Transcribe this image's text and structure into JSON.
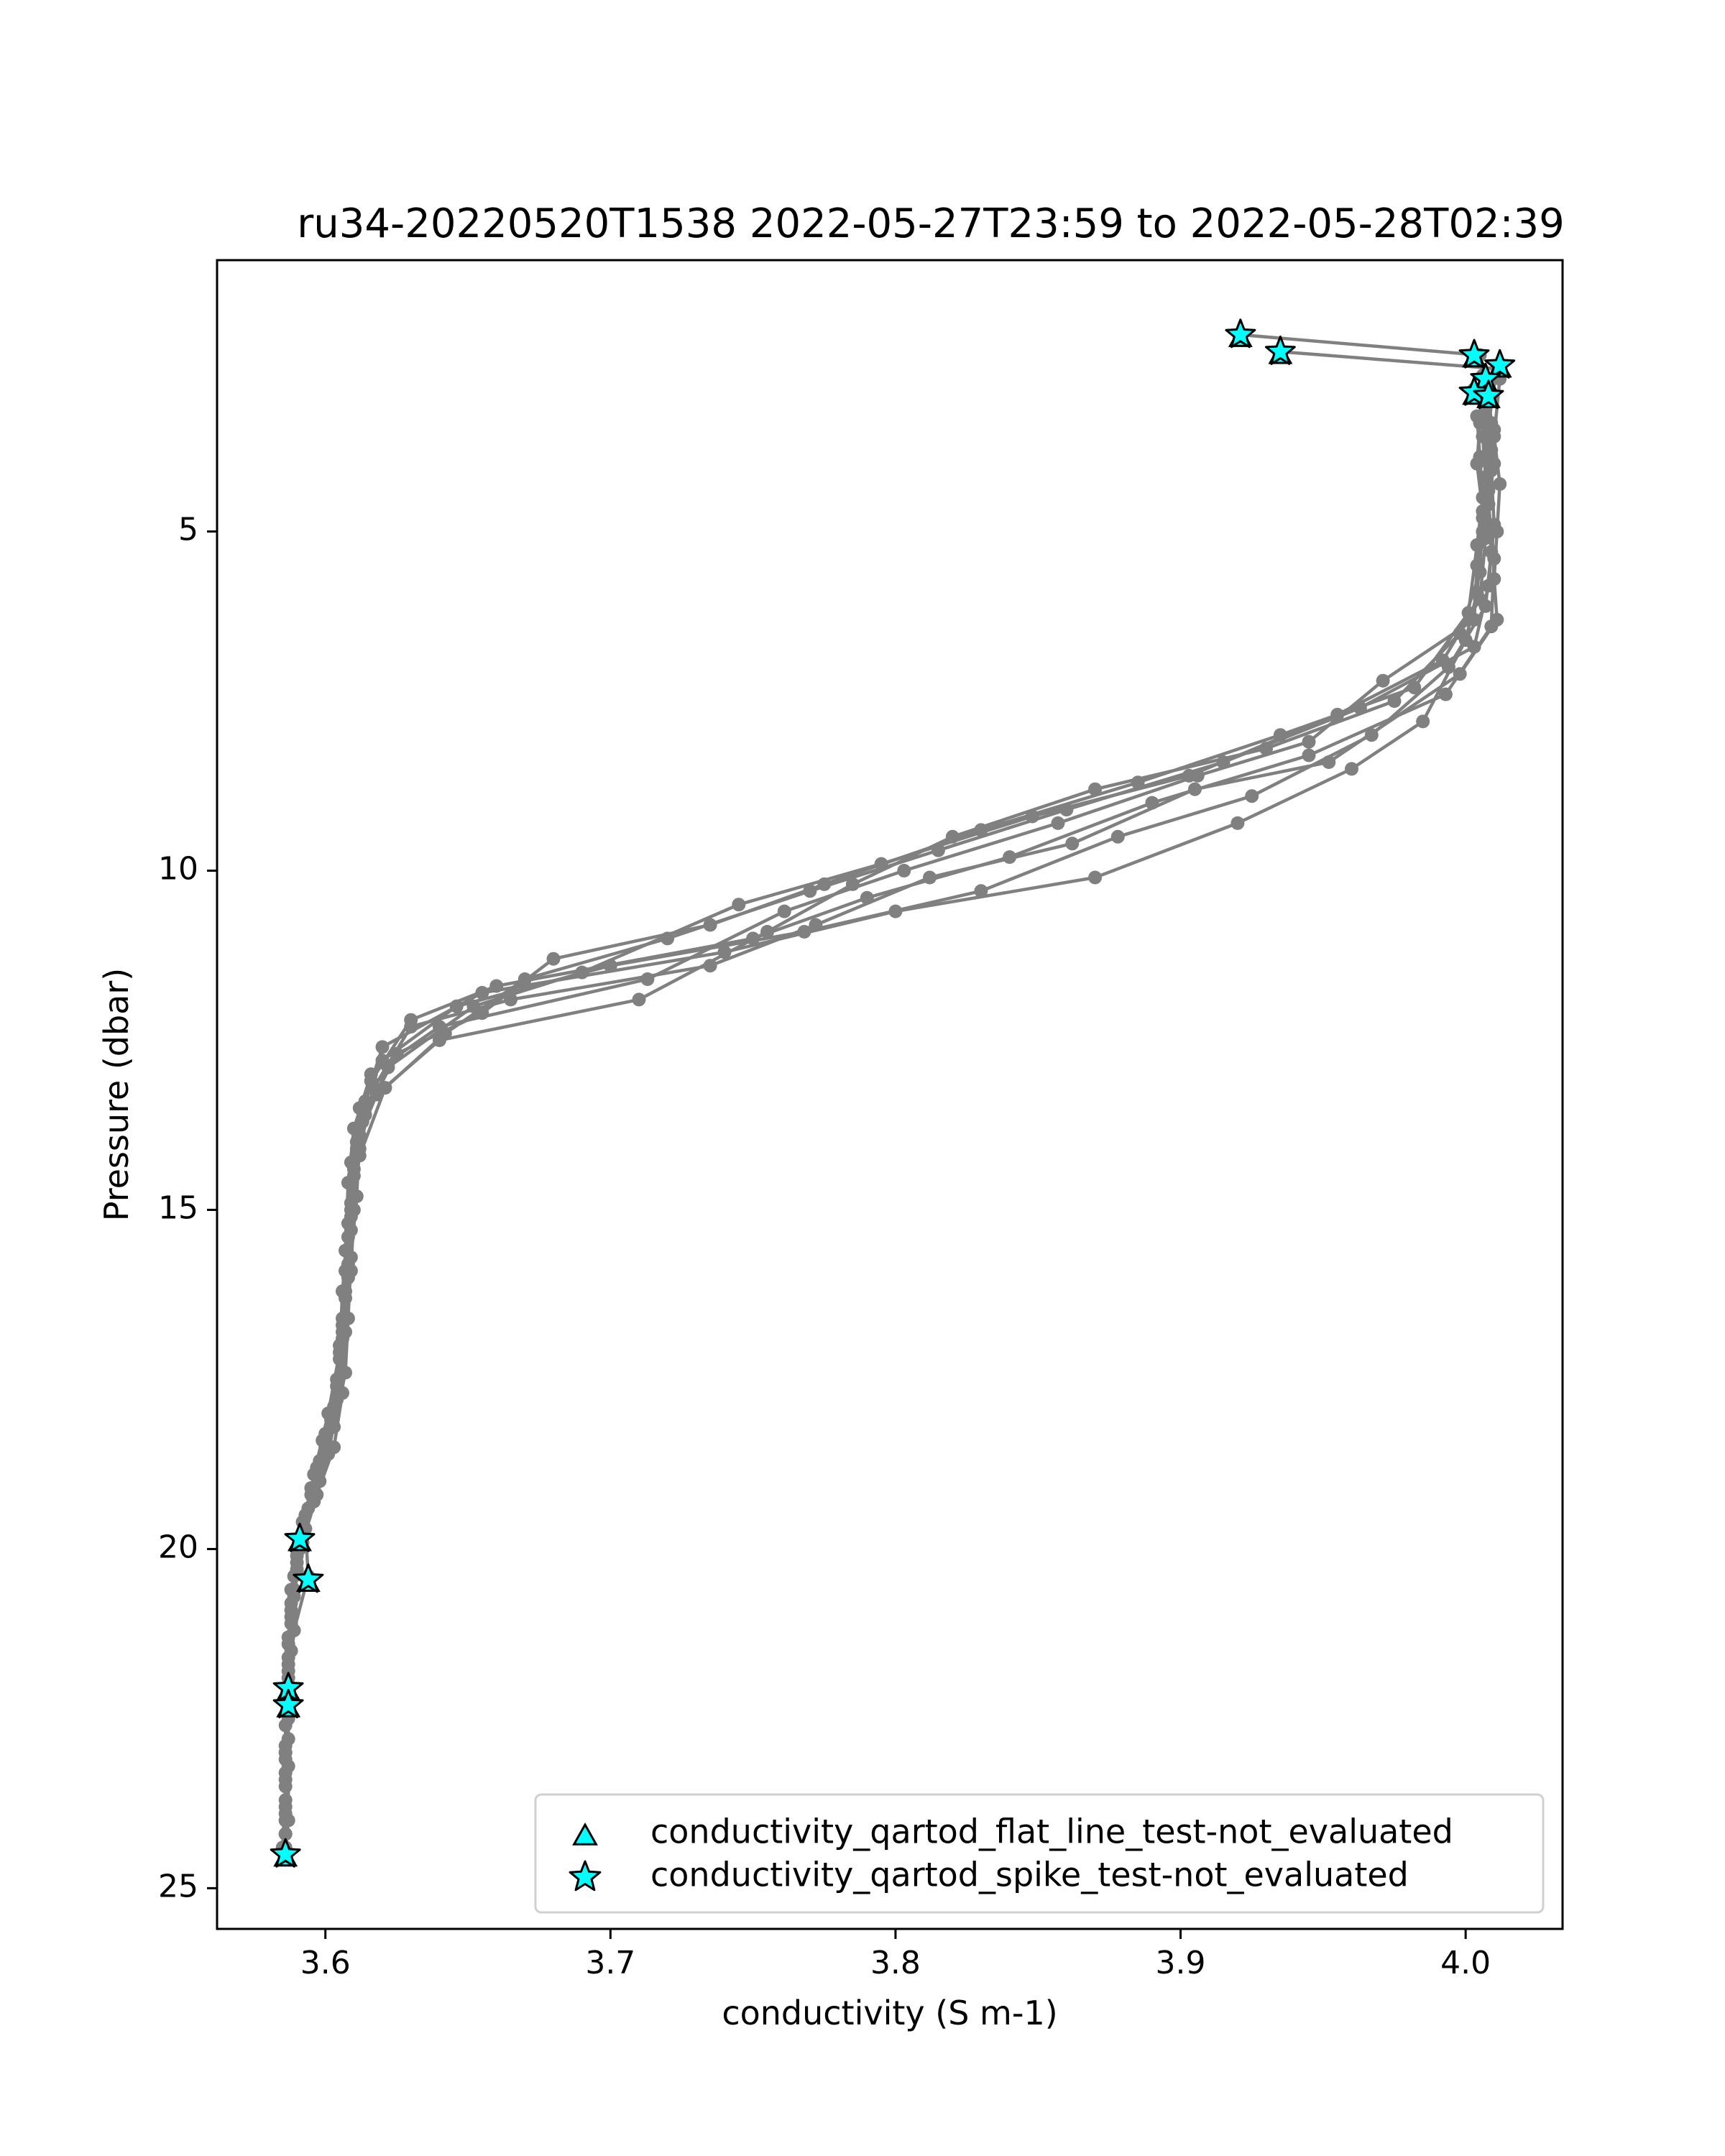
{
  "chart_data": {
    "type": "line",
    "title": "ru34-20220520T1538 2022-05-27T23:59 to 2022-05-28T02:39",
    "xlabel": "conductivity (S m-1)",
    "ylabel": "Pressure (dbar)",
    "xlim": [
      3.562,
      4.034
    ],
    "ylim": [
      25.6,
      1.0
    ],
    "y_inverted": true,
    "grid": false,
    "x_ticks": [
      3.6,
      3.7,
      3.8,
      3.9,
      4.0
    ],
    "x_tick_labels": [
      "3.6",
      "3.7",
      "3.8",
      "3.9",
      "4.0"
    ],
    "y_ticks": [
      5,
      10,
      15,
      20,
      25
    ],
    "y_tick_labels": [
      "5",
      "10",
      "15",
      "20",
      "25"
    ],
    "line_color": "#808080",
    "flag_color": "#00ffff",
    "legend_position": "lower right",
    "legend": [
      {
        "marker": "triangle",
        "label": "conductivity_qartod_flat_line_test-not_evaluated"
      },
      {
        "marker": "star",
        "label": "conductivity_qartod_spike_test-not_evaluated"
      }
    ],
    "series": [
      {
        "values": [
          [
            3.921,
            2.1
          ],
          [
            4.005,
            2.4
          ],
          [
            4.006,
            2.7
          ],
          [
            4.007,
            3.1
          ],
          [
            4.006,
            3.6
          ],
          [
            4.007,
            4.2
          ],
          [
            4.006,
            4.8
          ],
          [
            4.004,
            5.5
          ],
          [
            4.003,
            6.3
          ],
          [
            3.971,
            7.2
          ],
          [
            3.945,
            8.1
          ],
          [
            3.906,
            8.6
          ],
          [
            3.857,
            9.3
          ],
          [
            3.803,
            10.0
          ],
          [
            3.761,
            10.6
          ],
          [
            3.713,
            11.6
          ],
          [
            3.64,
            12.3
          ],
          [
            3.616,
            13.0
          ],
          [
            3.61,
            13.8
          ],
          [
            3.608,
            14.6
          ],
          [
            3.607,
            15.6
          ],
          [
            3.606,
            16.6
          ],
          [
            3.604,
            17.5
          ],
          [
            3.6,
            18.3
          ],
          [
            3.595,
            19.1
          ],
          [
            3.591,
            19.9
          ],
          [
            3.588,
            20.6
          ],
          [
            3.587,
            21.4
          ],
          [
            3.587,
            22.3
          ],
          [
            3.587,
            23.2
          ],
          [
            3.587,
            24.0
          ],
          [
            3.586,
            24.5
          ]
        ]
      },
      {
        "values": [
          [
            3.935,
            2.35
          ],
          [
            4.011,
            2.6
          ],
          [
            4.008,
            2.9
          ],
          [
            4.009,
            3.4
          ],
          [
            4.01,
            4.0
          ],
          [
            4.008,
            4.6
          ],
          [
            4.009,
            5.3
          ],
          [
            4.007,
            6.1
          ],
          [
            3.994,
            7.0
          ],
          [
            3.967,
            8.0
          ],
          [
            3.925,
            8.9
          ],
          [
            3.878,
            9.5
          ],
          [
            3.83,
            10.3
          ],
          [
            3.768,
            10.9
          ],
          [
            3.7,
            11.4
          ],
          [
            3.646,
            12.0
          ],
          [
            3.62,
            12.8
          ],
          [
            3.612,
            13.5
          ],
          [
            3.609,
            14.3
          ],
          [
            3.608,
            15.2
          ],
          [
            3.606,
            16.2
          ],
          [
            3.605,
            17.1
          ],
          [
            3.601,
            18.0
          ],
          [
            3.596,
            18.9
          ],
          [
            3.593,
            19.7
          ],
          [
            3.594,
            20.4
          ],
          [
            3.589,
            21.2
          ],
          [
            3.587,
            22.0
          ],
          [
            3.586,
            23.0
          ],
          [
            3.586,
            24.0
          ],
          [
            3.586,
            24.5
          ]
        ]
      },
      {
        "values": [
          [
            4.003,
            2.9
          ],
          [
            4.006,
            3.3
          ],
          [
            4.007,
            3.9
          ],
          [
            4.008,
            4.6
          ],
          [
            4.01,
            5.4
          ],
          [
            4.009,
            6.4
          ],
          [
            3.993,
            7.4
          ],
          [
            3.945,
            8.3
          ],
          [
            3.89,
            9.0
          ],
          [
            3.84,
            9.8
          ],
          [
            3.79,
            10.4
          ],
          [
            3.75,
            11.0
          ],
          [
            3.66,
            11.7
          ],
          [
            3.63,
            12.2
          ],
          [
            3.616,
            13.1
          ],
          [
            3.612,
            13.9
          ],
          [
            3.611,
            14.8
          ],
          [
            3.609,
            15.7
          ],
          [
            3.608,
            16.6
          ],
          [
            3.607,
            17.4
          ],
          [
            3.603,
            18.2
          ],
          [
            3.598,
            19.0
          ],
          [
            3.592,
            19.8
          ],
          [
            3.589,
            20.7
          ],
          [
            3.587,
            21.6
          ],
          [
            3.587,
            22.5
          ],
          [
            3.586,
            23.4
          ],
          [
            3.586,
            24.2
          ]
        ]
      },
      {
        "values": [
          [
            4.011,
            2.7
          ],
          [
            4.009,
            3.0
          ],
          [
            4.008,
            3.5
          ],
          [
            4.007,
            4.2
          ],
          [
            4.006,
            5.0
          ],
          [
            4.004,
            5.9
          ],
          [
            4.0,
            6.6
          ],
          [
            3.985,
            7.8
          ],
          [
            3.96,
            8.5
          ],
          [
            3.92,
            9.3
          ],
          [
            3.87,
            10.1
          ],
          [
            3.8,
            10.6
          ],
          [
            3.74,
            11.2
          ],
          [
            3.655,
            11.8
          ],
          [
            3.62,
            12.6
          ],
          [
            3.614,
            13.4
          ],
          [
            3.611,
            14.1
          ],
          [
            3.609,
            15.0
          ],
          [
            3.607,
            15.9
          ],
          [
            3.606,
            16.8
          ],
          [
            3.605,
            17.7
          ],
          [
            3.601,
            18.6
          ],
          [
            3.596,
            19.3
          ],
          [
            3.59,
            20.1
          ],
          [
            3.588,
            20.9
          ],
          [
            3.587,
            21.8
          ],
          [
            3.587,
            22.8
          ],
          [
            3.586,
            23.7
          ],
          [
            3.586,
            24.5
          ]
        ]
      },
      {
        "values": [
          [
            4.008,
            2.8
          ],
          [
            4.007,
            3.2
          ],
          [
            4.009,
            3.8
          ],
          [
            4.008,
            4.4
          ],
          [
            4.007,
            5.1
          ],
          [
            4.005,
            6.0
          ],
          [
            3.992,
            6.9
          ],
          [
            3.955,
            7.7
          ],
          [
            3.903,
            8.6
          ],
          [
            3.848,
            9.2
          ],
          [
            3.795,
            9.9
          ],
          [
            3.745,
            10.5
          ],
          [
            3.69,
            11.5
          ],
          [
            3.652,
            12.0
          ],
          [
            3.622,
            12.9
          ],
          [
            3.613,
            13.7
          ],
          [
            3.61,
            14.5
          ],
          [
            3.608,
            15.4
          ],
          [
            3.607,
            16.3
          ],
          [
            3.605,
            17.2
          ],
          [
            3.602,
            18.1
          ],
          [
            3.597,
            18.8
          ],
          [
            3.592,
            19.6
          ],
          [
            3.589,
            20.4
          ],
          [
            3.587,
            21.3
          ],
          [
            3.587,
            22.2
          ],
          [
            3.586,
            23.1
          ],
          [
            3.586,
            24.0
          ]
        ]
      },
      {
        "values": [
          [
            4.006,
            2.95
          ],
          [
            4.005,
            3.4
          ],
          [
            4.004,
            4.0
          ],
          [
            4.006,
            4.7
          ],
          [
            4.005,
            5.6
          ],
          [
            3.998,
            6.5
          ],
          [
            3.975,
            7.5
          ],
          [
            3.93,
            8.2
          ],
          [
            3.87,
            8.8
          ],
          [
            3.82,
            9.5
          ],
          [
            3.785,
            10.2
          ],
          [
            3.755,
            10.9
          ],
          [
            3.71,
            11.9
          ],
          [
            3.64,
            12.5
          ],
          [
            3.618,
            13.3
          ],
          [
            3.611,
            14.0
          ],
          [
            3.609,
            14.9
          ],
          [
            3.608,
            15.8
          ],
          [
            3.606,
            16.7
          ],
          [
            3.604,
            17.6
          ],
          [
            3.6,
            18.5
          ],
          [
            3.595,
            19.2
          ],
          [
            3.591,
            20.0
          ],
          [
            3.588,
            20.8
          ],
          [
            3.587,
            21.7
          ],
          [
            3.586,
            22.6
          ],
          [
            3.586,
            23.5
          ],
          [
            3.585,
            24.4
          ]
        ]
      },
      {
        "values": [
          [
            4.004,
            3.3
          ],
          [
            4.005,
            3.9
          ],
          [
            4.006,
            4.5
          ],
          [
            4.004,
            5.2
          ],
          [
            4.001,
            6.2
          ],
          [
            3.982,
            7.3
          ],
          [
            3.935,
            8.0
          ],
          [
            3.885,
            8.7
          ],
          [
            3.83,
            9.4
          ],
          [
            3.775,
            10.2
          ],
          [
            3.735,
            10.8
          ],
          [
            3.68,
            11.3
          ],
          [
            3.655,
            12.1
          ],
          [
            3.625,
            12.7
          ],
          [
            3.614,
            13.6
          ],
          [
            3.61,
            14.4
          ],
          [
            3.609,
            15.3
          ],
          [
            3.607,
            16.2
          ],
          [
            3.605,
            17.0
          ],
          [
            3.603,
            17.9
          ],
          [
            3.598,
            18.7
          ],
          [
            3.593,
            19.5
          ],
          [
            3.59,
            20.3
          ],
          [
            3.588,
            21.1
          ],
          [
            3.587,
            22.1
          ],
          [
            3.586,
            23.0
          ],
          [
            3.586,
            23.9
          ]
        ]
      },
      {
        "values": [
          [
            4.01,
            3.5
          ],
          [
            4.009,
            4.1
          ],
          [
            4.01,
            4.9
          ],
          [
            4.008,
            5.8
          ],
          [
            4.003,
            6.7
          ],
          [
            3.963,
            7.6
          ],
          [
            3.915,
            8.4
          ],
          [
            3.86,
            9.1
          ],
          [
            3.815,
            9.7
          ],
          [
            3.77,
            10.3
          ],
          [
            3.72,
            11.0
          ],
          [
            3.67,
            11.6
          ],
          [
            3.642,
            12.4
          ],
          [
            3.621,
            13.2
          ],
          [
            3.612,
            14.2
          ],
          [
            3.609,
            15.1
          ],
          [
            3.608,
            16.0
          ],
          [
            3.606,
            16.9
          ],
          [
            3.604,
            17.8
          ],
          [
            3.599,
            18.4
          ],
          [
            3.594,
            19.4
          ],
          [
            3.59,
            20.2
          ],
          [
            3.588,
            21.0
          ],
          [
            3.587,
            21.9
          ],
          [
            3.586,
            22.9
          ],
          [
            3.586,
            23.8
          ],
          [
            3.586,
            24.4
          ]
        ]
      },
      {
        "values": [
          [
            4.012,
            2.75
          ],
          [
            4.01,
            3.6
          ],
          [
            4.012,
            4.3
          ],
          [
            4.011,
            5.0
          ],
          [
            4.01,
            5.7
          ],
          [
            4.011,
            6.3
          ],
          [
            3.998,
            7.1
          ],
          [
            3.952,
            8.4
          ],
          [
            3.905,
            8.8
          ],
          [
            3.862,
            9.6
          ],
          [
            3.812,
            10.1
          ],
          [
            3.772,
            10.8
          ],
          [
            3.735,
            11.4
          ],
          [
            3.665,
            11.9
          ],
          [
            3.63,
            12.3
          ],
          [
            3.617,
            13.2
          ],
          [
            3.612,
            14.1
          ],
          [
            3.61,
            15.0
          ],
          [
            3.609,
            15.9
          ],
          [
            3.607,
            16.8
          ],
          [
            3.606,
            17.7
          ],
          [
            3.603,
            18.5
          ],
          [
            3.597,
            19.2
          ],
          [
            3.592,
            19.9
          ],
          [
            3.589,
            20.6
          ],
          [
            3.588,
            21.5
          ],
          [
            3.587,
            22.4
          ],
          [
            3.586,
            23.3
          ],
          [
            3.586,
            24.2
          ]
        ]
      }
    ],
    "flagged_points": [
      {
        "x": 3.921,
        "y": 2.1
      },
      {
        "x": 3.935,
        "y": 2.35
      },
      {
        "x": 4.003,
        "y": 2.4
      },
      {
        "x": 4.012,
        "y": 2.55
      },
      {
        "x": 4.007,
        "y": 2.75
      },
      {
        "x": 4.003,
        "y": 2.95
      },
      {
        "x": 4.008,
        "y": 3.0
      },
      {
        "x": 3.591,
        "y": 19.85
      },
      {
        "x": 3.594,
        "y": 20.45
      },
      {
        "x": 3.587,
        "y": 22.05
      },
      {
        "x": 3.587,
        "y": 22.3
      },
      {
        "x": 3.586,
        "y": 24.5
      }
    ]
  }
}
